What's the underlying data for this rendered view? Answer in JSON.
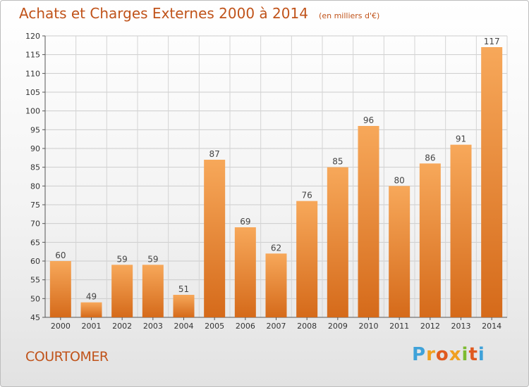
{
  "header": {
    "title": "Achats et Charges Externes 2000 à 2014",
    "unit": "(en milliers d'€)"
  },
  "footer": {
    "commune": "COURTOMER",
    "logo_text": "Proxiti"
  },
  "colors": {
    "accent": "#c0531a",
    "bar_light": "#f7a85a",
    "bar_dark": "#d96f1e"
  },
  "chart_data": {
    "type": "bar",
    "title": "Achats et Charges Externes 2000 à 2014",
    "subtitle": "(en milliers d'€)",
    "categories": [
      "2000",
      "2001",
      "2002",
      "2003",
      "2004",
      "2005",
      "2006",
      "2007",
      "2008",
      "2009",
      "2010",
      "2011",
      "2012",
      "2013",
      "2014"
    ],
    "values": [
      60,
      49,
      59,
      59,
      51,
      87,
      69,
      62,
      76,
      85,
      96,
      80,
      86,
      91,
      117
    ],
    "ylim": [
      45,
      120
    ],
    "yticks": [
      45,
      50,
      55,
      60,
      65,
      70,
      75,
      80,
      85,
      90,
      95,
      100,
      105,
      110,
      115,
      120
    ],
    "grid": true,
    "legend": "none"
  }
}
